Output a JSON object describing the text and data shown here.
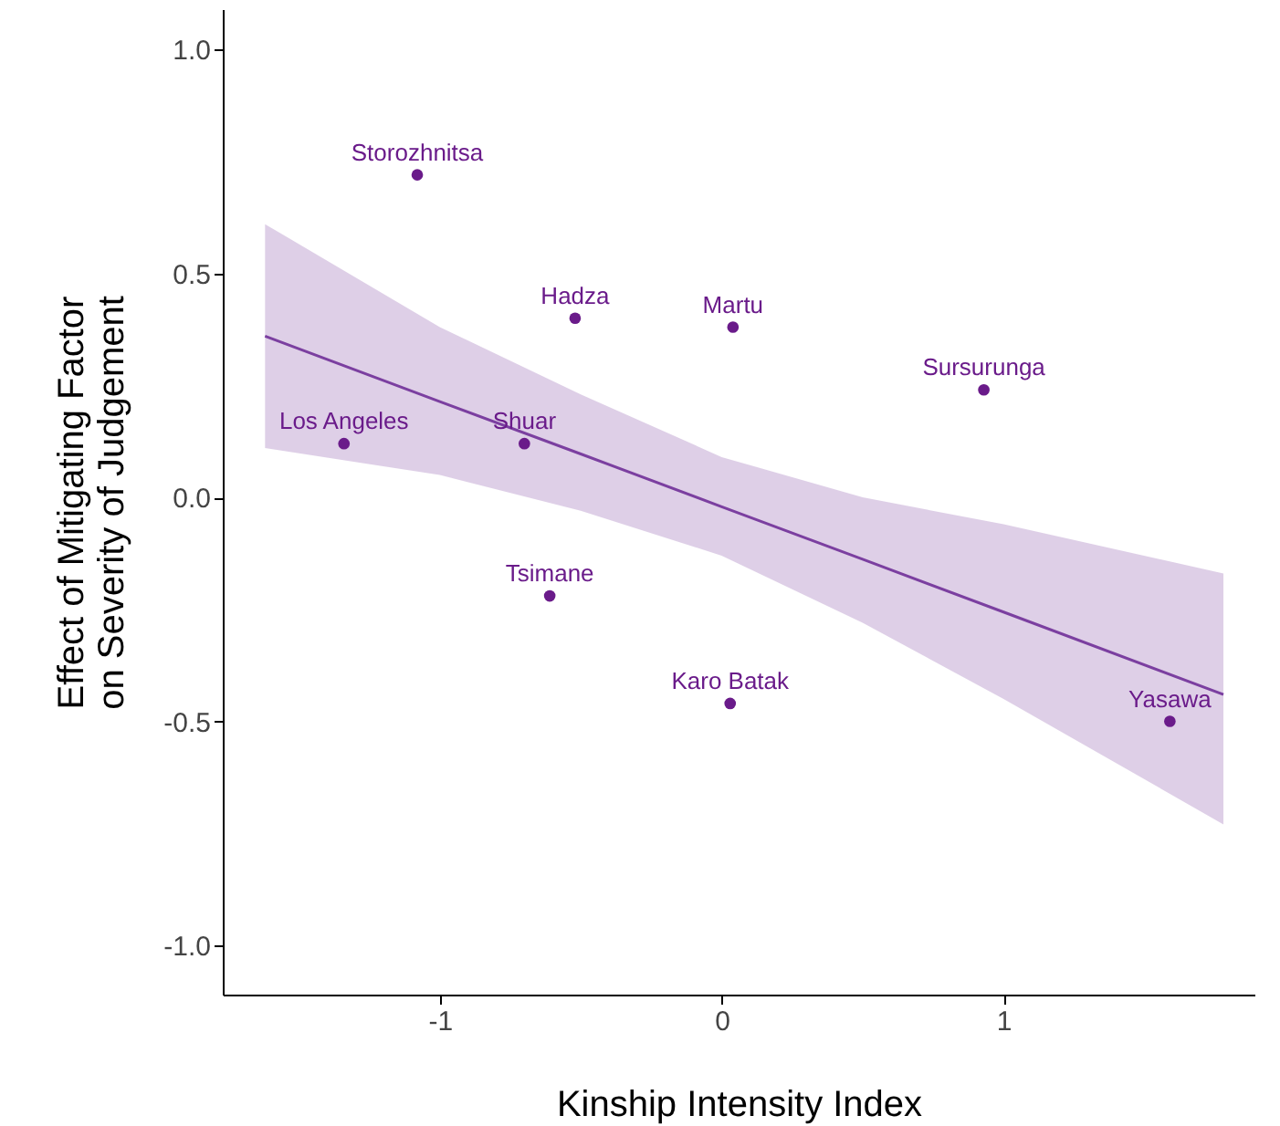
{
  "chart_data": {
    "type": "scatter",
    "xlabel": "Kinship Intensity Index",
    "ylabel": "Effect of Mitigating Factor\non Severity of Judgement",
    "xlim": [
      -1.77,
      1.89
    ],
    "ylim": [
      -1.11,
      1.09
    ],
    "xticks": [
      -1,
      0,
      1
    ],
    "yticks": [
      {
        "value": -1,
        "label": "-1.0"
      },
      {
        "value": -0.5,
        "label": "-0.5"
      },
      {
        "value": 0,
        "label": "0.0"
      },
      {
        "value": 0.5,
        "label": "0.5"
      },
      {
        "value": 1,
        "label": "1.0"
      }
    ],
    "marker": "circle",
    "line_style": "solid",
    "series": [
      {
        "type": "line",
        "marker": "none",
        "color": "#7b3fa0",
        "x": [
          -1.62,
          -1,
          -0.5,
          0,
          0.5,
          1,
          1.78
        ],
        "values": [
          0.36,
          0.214,
          0.097,
          -0.021,
          -0.138,
          -0.256,
          -0.44
        ],
        "lower": [
          0.11,
          0.05,
          -0.03,
          -0.13,
          -0.28,
          -0.45,
          -0.73
        ],
        "upper": [
          0.61,
          0.38,
          0.23,
          0.09,
          0.0,
          -0.06,
          -0.17
        ]
      },
      {
        "name": "Storozhnitsa",
        "color": "#6a1b8a",
        "x": [
          -1.08
        ],
        "values": [
          0.72
        ]
      },
      {
        "name": "Hadza",
        "color": "#6a1b8a",
        "x": [
          -0.52
        ],
        "values": [
          0.4
        ]
      },
      {
        "name": "Martu",
        "color": "#6a1b8a",
        "x": [
          0.04
        ],
        "values": [
          0.38
        ]
      },
      {
        "name": "Sursurunga",
        "color": "#6a1b8a",
        "x": [
          0.93
        ],
        "values": [
          0.24
        ]
      },
      {
        "name": "Los Angeles",
        "color": "#6a1b8a",
        "x": [
          -1.34
        ],
        "values": [
          0.12
        ]
      },
      {
        "name": "Shuar",
        "color": "#6a1b8a",
        "x": [
          -0.7
        ],
        "values": [
          0.12
        ]
      },
      {
        "name": "Tsimane",
        "color": "#6a1b8a",
        "x": [
          -0.61
        ],
        "values": [
          -0.22
        ]
      },
      {
        "name": "Karo Batak",
        "color": "#6a1b8a",
        "x": [
          0.03
        ],
        "values": [
          -0.46
        ]
      },
      {
        "name": "Yasawa",
        "color": "#6a1b8a",
        "x": [
          1.59
        ],
        "values": [
          -0.5
        ]
      }
    ]
  }
}
